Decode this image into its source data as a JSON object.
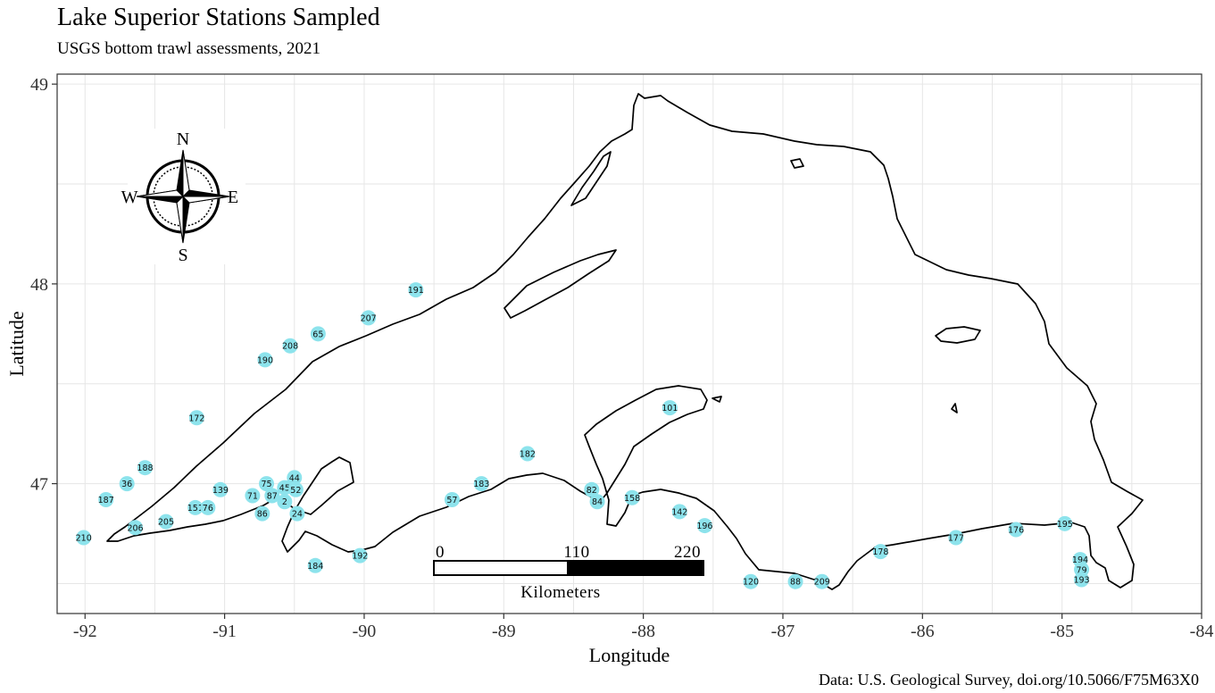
{
  "title": "Lake Superior Stations Sampled",
  "subtitle": "USGS bottom trawl assessments, 2021",
  "caption": "Data: U.S. Geological Survey, doi.org/10.5066/F75M63X0",
  "axes": {
    "xlabel": "Longitude",
    "ylabel": "Latitude",
    "xlim": [
      -92.2,
      -84.0
    ],
    "ylim": [
      46.35,
      49.05
    ],
    "xticks": [
      -92,
      -91,
      -90,
      -89,
      -88,
      -87,
      -86,
      -85,
      -84
    ],
    "yticks": [
      47,
      48,
      49
    ],
    "grid": true
  },
  "colors": {
    "station": "#8de3ec",
    "shoreline": "#000000",
    "grid": "#e6e6e6"
  },
  "compass": {
    "n": "N",
    "s": "S",
    "e": "E",
    "w": "W"
  },
  "scale_bar": {
    "labels": [
      "0",
      "110",
      "220"
    ],
    "units": "Kilometers"
  },
  "stations": [
    {
      "id": "210",
      "lon": -92.01,
      "lat": 46.73
    },
    {
      "id": "187",
      "lon": -91.85,
      "lat": 46.92
    },
    {
      "id": "36",
      "lon": -91.7,
      "lat": 47.0
    },
    {
      "id": "188",
      "lon": -91.57,
      "lat": 47.08
    },
    {
      "id": "206",
      "lon": -91.64,
      "lat": 46.78
    },
    {
      "id": "205",
      "lon": -91.42,
      "lat": 46.81
    },
    {
      "id": "151",
      "lon": -91.21,
      "lat": 46.88
    },
    {
      "id": "76",
      "lon": -91.12,
      "lat": 46.88
    },
    {
      "id": "139",
      "lon": -91.03,
      "lat": 46.97
    },
    {
      "id": "172",
      "lon": -91.2,
      "lat": 47.33
    },
    {
      "id": "190",
      "lon": -90.71,
      "lat": 47.62
    },
    {
      "id": "208",
      "lon": -90.53,
      "lat": 47.69
    },
    {
      "id": "65",
      "lon": -90.33,
      "lat": 47.75
    },
    {
      "id": "207",
      "lon": -89.97,
      "lat": 47.83
    },
    {
      "id": "191",
      "lon": -89.63,
      "lat": 47.97
    },
    {
      "id": "75",
      "lon": -90.7,
      "lat": 47.0
    },
    {
      "id": "71",
      "lon": -90.8,
      "lat": 46.94
    },
    {
      "id": "87",
      "lon": -90.66,
      "lat": 46.94
    },
    {
      "id": "45",
      "lon": -90.57,
      "lat": 46.98
    },
    {
      "id": "44",
      "lon": -90.5,
      "lat": 47.03
    },
    {
      "id": "52",
      "lon": -90.49,
      "lat": 46.97
    },
    {
      "id": "2",
      "lon": -90.57,
      "lat": 46.91
    },
    {
      "id": "86",
      "lon": -90.73,
      "lat": 46.85
    },
    {
      "id": "24",
      "lon": -90.48,
      "lat": 46.85
    },
    {
      "id": "184",
      "lon": -90.35,
      "lat": 46.59
    },
    {
      "id": "192",
      "lon": -90.03,
      "lat": 46.64
    },
    {
      "id": "57",
      "lon": -89.37,
      "lat": 46.92
    },
    {
      "id": "183",
      "lon": -89.16,
      "lat": 47.0
    },
    {
      "id": "182",
      "lon": -88.83,
      "lat": 47.15
    },
    {
      "id": "101",
      "lon": -87.81,
      "lat": 47.38
    },
    {
      "id": "82",
      "lon": -88.37,
      "lat": 46.97
    },
    {
      "id": "84",
      "lon": -88.33,
      "lat": 46.91
    },
    {
      "id": "158",
      "lon": -88.08,
      "lat": 46.93
    },
    {
      "id": "142",
      "lon": -87.74,
      "lat": 46.86
    },
    {
      "id": "196",
      "lon": -87.56,
      "lat": 46.79
    },
    {
      "id": "120",
      "lon": -87.23,
      "lat": 46.51
    },
    {
      "id": "88",
      "lon": -86.91,
      "lat": 46.51
    },
    {
      "id": "209",
      "lon": -86.72,
      "lat": 46.51
    },
    {
      "id": "178",
      "lon": -86.3,
      "lat": 46.66
    },
    {
      "id": "177",
      "lon": -85.76,
      "lat": 46.73
    },
    {
      "id": "176",
      "lon": -85.33,
      "lat": 46.77
    },
    {
      "id": "195",
      "lon": -84.98,
      "lat": 46.8
    },
    {
      "id": "194",
      "lon": -84.87,
      "lat": 46.62
    },
    {
      "id": "79",
      "lon": -84.86,
      "lat": 46.57
    },
    {
      "id": "193",
      "lon": -84.86,
      "lat": 46.52
    }
  ]
}
